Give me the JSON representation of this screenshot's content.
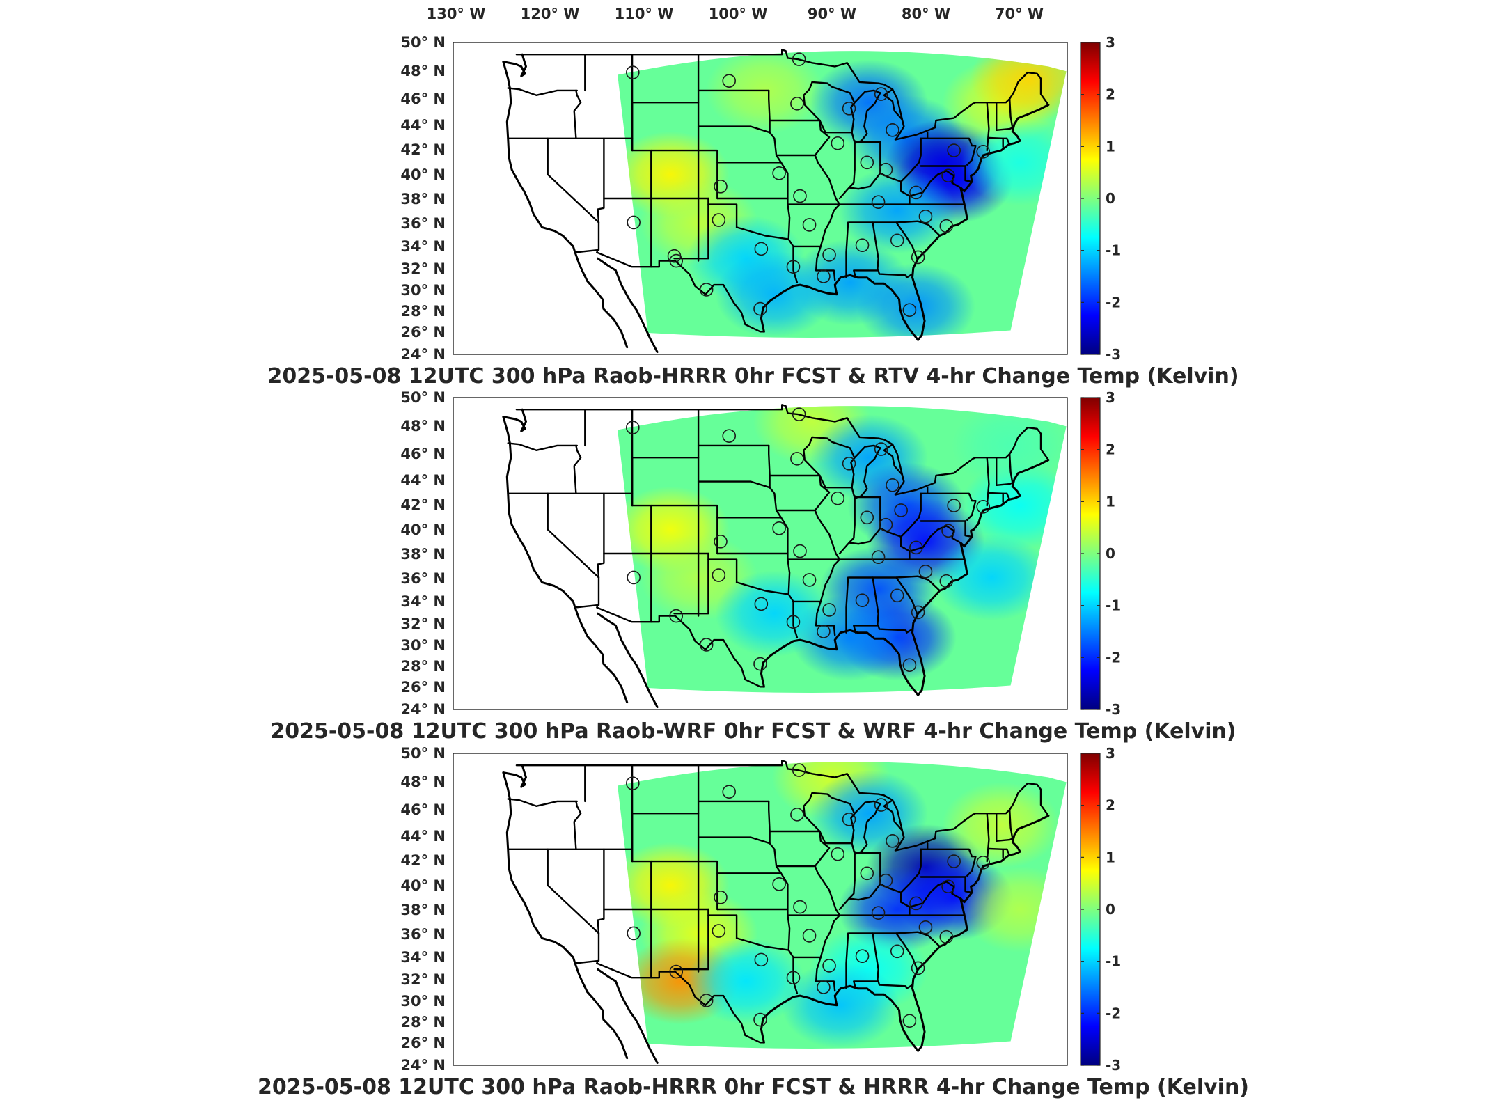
{
  "top_lon_labels": [
    "130° W",
    "120° W",
    "110° W",
    "100° W",
    "90° W",
    "80° W",
    "70° W"
  ],
  "lat_labels": [
    "50° N",
    "48° N",
    "46° N",
    "44° N",
    "42° N",
    "40° N",
    "38° N",
    "36° N",
    "34° N",
    "32° N",
    "30° N",
    "28° N",
    "26° N",
    "24° N"
  ],
  "colorbar": {
    "ticks": [
      "3",
      "2",
      "1",
      "0",
      "-1",
      "-2",
      "-3"
    ],
    "min": -3,
    "max": 3,
    "colormap": [
      "#00007f",
      "#0000ff",
      "#007fff",
      "#00ffff",
      "#7fff7f",
      "#ffff00",
      "#ff7f00",
      "#ff0000",
      "#7f0000"
    ]
  },
  "panels": [
    {
      "title": "2025-05-08 12UTC 300 hPa Raob-HRRR 0hr FCST & RTV 4-hr Change Temp (Kelvin)",
      "field_anomalies": [
        {
          "lon": -107,
          "lat": 39,
          "value": 0.8
        },
        {
          "lon": -104,
          "lat": 35,
          "value": 0.4
        },
        {
          "lon": -97,
          "lat": 46,
          "value": 0.3
        },
        {
          "lon": -86,
          "lat": 45,
          "value": -1.6
        },
        {
          "lon": -82,
          "lat": 42,
          "value": -1.5
        },
        {
          "lon": -78,
          "lat": 40,
          "value": -2.6
        },
        {
          "lon": -77,
          "lat": 38.5,
          "value": -2.3
        },
        {
          "lon": -83,
          "lat": 36,
          "value": -1.3
        },
        {
          "lon": -88,
          "lat": 30,
          "value": -1.3
        },
        {
          "lon": -81,
          "lat": 28,
          "value": -1.4
        },
        {
          "lon": -99,
          "lat": 32,
          "value": -1.0
        },
        {
          "lon": -96,
          "lat": 29,
          "value": -1.2
        },
        {
          "lon": -72,
          "lat": 45,
          "value": 0.5
        },
        {
          "lon": -69,
          "lat": 47,
          "value": 1.0
        },
        {
          "lon": -70,
          "lat": 40,
          "value": -0.6
        }
      ],
      "stations": [
        {
          "lon": -111.0,
          "lat": 47.5,
          "value": 0.2
        },
        {
          "lon": -100.8,
          "lat": 46.8,
          "value": -0.2
        },
        {
          "lon": -93.4,
          "lat": 48.6,
          "value": -0.4
        },
        {
          "lon": -93.6,
          "lat": 44.9,
          "value": -0.6
        },
        {
          "lon": -88.1,
          "lat": 44.5,
          "value": -1.6
        },
        {
          "lon": -84.7,
          "lat": 45.7,
          "value": -2.1
        },
        {
          "lon": -83.5,
          "lat": 42.7,
          "value": -1.3
        },
        {
          "lon": -89.3,
          "lat": 41.6,
          "value": -0.5
        },
        {
          "lon": -86.2,
          "lat": 40.0,
          "value": -0.3
        },
        {
          "lon": -84.2,
          "lat": 39.4,
          "value": -2.4
        },
        {
          "lon": -77.0,
          "lat": 41.0,
          "value": -2.2
        },
        {
          "lon": -77.6,
          "lat": 38.9,
          "value": -2.7
        },
        {
          "lon": -81.0,
          "lat": 37.5,
          "value": -1.5
        },
        {
          "lon": -85.0,
          "lat": 36.7,
          "value": -1.8
        },
        {
          "lon": -80.0,
          "lat": 35.5,
          "value": -0.8
        },
        {
          "lon": -77.8,
          "lat": 34.7,
          "value": -1.6
        },
        {
          "lon": -83.0,
          "lat": 33.5,
          "value": -0.9
        },
        {
          "lon": -86.7,
          "lat": 33.1,
          "value": -0.8
        },
        {
          "lon": -90.2,
          "lat": 32.3,
          "value": -0.7
        },
        {
          "lon": -92.3,
          "lat": 34.8,
          "value": -0.5
        },
        {
          "lon": -93.3,
          "lat": 37.2,
          "value": -0.4
        },
        {
          "lon": -95.5,
          "lat": 39.1,
          "value": -0.5
        },
        {
          "lon": -101.7,
          "lat": 38.0,
          "value": 0.3
        },
        {
          "lon": -110.9,
          "lat": 35.0,
          "value": 0.4
        },
        {
          "lon": -106.6,
          "lat": 32.2,
          "value": 0.1
        },
        {
          "lon": -101.9,
          "lat": 35.2,
          "value": 0.2
        },
        {
          "lon": -97.4,
          "lat": 32.8,
          "value": -0.6
        },
        {
          "lon": -94.0,
          "lat": 31.3,
          "value": -0.9
        },
        {
          "lon": -90.8,
          "lat": 30.5,
          "value": -0.9
        },
        {
          "lon": -106.4,
          "lat": 31.8,
          "value": 0.2
        },
        {
          "lon": -103.2,
          "lat": 29.4,
          "value": -0.4
        },
        {
          "lon": -97.5,
          "lat": 27.8,
          "value": -0.5
        },
        {
          "lon": -81.7,
          "lat": 27.7,
          "value": -1.6
        },
        {
          "lon": -80.8,
          "lat": 32.1,
          "value": -1.1
        },
        {
          "lon": -73.9,
          "lat": 40.9,
          "value": -1.3
        }
      ]
    },
    {
      "title": "2025-05-08 12UTC 300 hPa Raob-WRF 0hr FCST & WRF 4-hr Change Temp (Kelvin)",
      "field_anomalies": [
        {
          "lon": -107,
          "lat": 39,
          "value": 0.7
        },
        {
          "lon": -104,
          "lat": 35,
          "value": 0.3
        },
        {
          "lon": -92,
          "lat": 48,
          "value": 0.4
        },
        {
          "lon": -86,
          "lat": 45,
          "value": -1.3
        },
        {
          "lon": -82,
          "lat": 41,
          "value": -1.8
        },
        {
          "lon": -80,
          "lat": 38,
          "value": -2.2
        },
        {
          "lon": -85,
          "lat": 34,
          "value": -1.8
        },
        {
          "lon": -83,
          "lat": 30,
          "value": -2.0
        },
        {
          "lon": -88,
          "lat": 30,
          "value": -1.5
        },
        {
          "lon": -96,
          "lat": 32,
          "value": -1.0
        },
        {
          "lon": -73,
          "lat": 35,
          "value": -1.0
        },
        {
          "lon": -70,
          "lat": 41,
          "value": -0.7
        },
        {
          "lon": -71,
          "lat": 46,
          "value": -0.3
        }
      ],
      "stations": [
        {
          "lon": -111.0,
          "lat": 47.5,
          "value": 0.1
        },
        {
          "lon": -100.8,
          "lat": 46.8,
          "value": -0.1
        },
        {
          "lon": -93.4,
          "lat": 48.6,
          "value": 0.3
        },
        {
          "lon": -93.6,
          "lat": 44.9,
          "value": -1.0
        },
        {
          "lon": -88.1,
          "lat": 44.5,
          "value": -1.5
        },
        {
          "lon": -84.7,
          "lat": 45.7,
          "value": -1.9
        },
        {
          "lon": -83.5,
          "lat": 42.7,
          "value": -0.9
        },
        {
          "lon": -89.3,
          "lat": 41.6,
          "value": -0.2
        },
        {
          "lon": -86.2,
          "lat": 40.0,
          "value": -0.3
        },
        {
          "lon": -84.2,
          "lat": 39.4,
          "value": -2.3
        },
        {
          "lon": -82.6,
          "lat": 40.6,
          "value": -2.1
        },
        {
          "lon": -77.0,
          "lat": 41.0,
          "value": -0.8
        },
        {
          "lon": -77.6,
          "lat": 38.9,
          "value": -2.6
        },
        {
          "lon": -81.0,
          "lat": 37.5,
          "value": -2.5
        },
        {
          "lon": -85.0,
          "lat": 36.7,
          "value": -0.6
        },
        {
          "lon": -80.0,
          "lat": 35.5,
          "value": -1.6
        },
        {
          "lon": -77.8,
          "lat": 34.7,
          "value": -2.0
        },
        {
          "lon": -83.0,
          "lat": 33.5,
          "value": -0.9
        },
        {
          "lon": -86.7,
          "lat": 33.1,
          "value": -0.7
        },
        {
          "lon": -90.2,
          "lat": 32.3,
          "value": -0.5
        },
        {
          "lon": -92.3,
          "lat": 34.8,
          "value": -0.3
        },
        {
          "lon": -93.3,
          "lat": 37.2,
          "value": -0.3
        },
        {
          "lon": -95.5,
          "lat": 39.1,
          "value": -0.2
        },
        {
          "lon": -101.7,
          "lat": 38.0,
          "value": 0.3
        },
        {
          "lon": -110.9,
          "lat": 35.0,
          "value": 0.2
        },
        {
          "lon": -101.9,
          "lat": 35.2,
          "value": 0.6
        },
        {
          "lon": -97.4,
          "lat": 32.8,
          "value": -0.4
        },
        {
          "lon": -94.0,
          "lat": 31.3,
          "value": -0.9
        },
        {
          "lon": -90.8,
          "lat": 30.5,
          "value": -1.2
        },
        {
          "lon": -106.4,
          "lat": 31.8,
          "value": 0.1
        },
        {
          "lon": -103.2,
          "lat": 29.4,
          "value": -0.2
        },
        {
          "lon": -97.5,
          "lat": 27.8,
          "value": -0.4
        },
        {
          "lon": -81.7,
          "lat": 27.7,
          "value": -2.4
        },
        {
          "lon": -80.8,
          "lat": 32.1,
          "value": -2.4
        },
        {
          "lon": -73.9,
          "lat": 40.9,
          "value": -1.5
        }
      ]
    },
    {
      "title": "2025-05-08 12UTC 300 hPa Raob-HRRR 0hr FCST & HRRR 4-hr Change Temp (Kelvin)",
      "field_anomalies": [
        {
          "lon": -107,
          "lat": 39,
          "value": 0.8
        },
        {
          "lon": -104,
          "lat": 35,
          "value": 0.6
        },
        {
          "lon": -106,
          "lat": 31,
          "value": 1.4
        },
        {
          "lon": -90,
          "lat": 48,
          "value": 0.5
        },
        {
          "lon": -86,
          "lat": 45,
          "value": -1.3
        },
        {
          "lon": -80,
          "lat": 40.5,
          "value": -2.7
        },
        {
          "lon": -83,
          "lat": 37,
          "value": -2.0
        },
        {
          "lon": -77,
          "lat": 38,
          "value": -2.2
        },
        {
          "lon": -86,
          "lat": 32,
          "value": -0.7
        },
        {
          "lon": -99,
          "lat": 31,
          "value": -0.9
        },
        {
          "lon": -89,
          "lat": 29,
          "value": -1.1
        },
        {
          "lon": -72,
          "lat": 44,
          "value": 0.4
        },
        {
          "lon": -70,
          "lat": 37,
          "value": 0.3
        }
      ],
      "stations": [
        {
          "lon": -111.0,
          "lat": 47.5,
          "value": 0.3
        },
        {
          "lon": -100.8,
          "lat": 46.8,
          "value": 0.0
        },
        {
          "lon": -93.4,
          "lat": 48.6,
          "value": 0.3
        },
        {
          "lon": -93.6,
          "lat": 44.9,
          "value": -0.6
        },
        {
          "lon": -88.1,
          "lat": 44.5,
          "value": -1.7
        },
        {
          "lon": -84.7,
          "lat": 45.7,
          "value": -2.0
        },
        {
          "lon": -83.5,
          "lat": 42.7,
          "value": -1.2
        },
        {
          "lon": -89.3,
          "lat": 41.6,
          "value": -0.3
        },
        {
          "lon": -86.2,
          "lat": 40.0,
          "value": -0.4
        },
        {
          "lon": -84.2,
          "lat": 39.4,
          "value": -1.9
        },
        {
          "lon": -77.0,
          "lat": 41.0,
          "value": -2.5
        },
        {
          "lon": -77.6,
          "lat": 38.9,
          "value": -2.6
        },
        {
          "lon": -81.0,
          "lat": 37.5,
          "value": -1.2
        },
        {
          "lon": -85.0,
          "lat": 36.7,
          "value": -1.6
        },
        {
          "lon": -80.0,
          "lat": 35.5,
          "value": -0.7
        },
        {
          "lon": -77.8,
          "lat": 34.7,
          "value": -0.9
        },
        {
          "lon": -83.0,
          "lat": 33.5,
          "value": -0.7
        },
        {
          "lon": -86.7,
          "lat": 33.1,
          "value": -0.6
        },
        {
          "lon": -90.2,
          "lat": 32.3,
          "value": -0.5
        },
        {
          "lon": -92.3,
          "lat": 34.8,
          "value": -1.6
        },
        {
          "lon": -93.3,
          "lat": 37.2,
          "value": -0.4
        },
        {
          "lon": -95.5,
          "lat": 39.1,
          "value": -0.3
        },
        {
          "lon": -101.7,
          "lat": 38.0,
          "value": 0.4
        },
        {
          "lon": -110.9,
          "lat": 35.0,
          "value": 0.5
        },
        {
          "lon": -101.9,
          "lat": 35.2,
          "value": 0.8
        },
        {
          "lon": -97.4,
          "lat": 32.8,
          "value": -0.7
        },
        {
          "lon": -94.0,
          "lat": 31.3,
          "value": -0.8
        },
        {
          "lon": -90.8,
          "lat": 30.5,
          "value": -0.8
        },
        {
          "lon": -106.4,
          "lat": 31.8,
          "value": 0.4
        },
        {
          "lon": -103.2,
          "lat": 29.4,
          "value": -0.3
        },
        {
          "lon": -97.5,
          "lat": 27.8,
          "value": -0.5
        },
        {
          "lon": -81.7,
          "lat": 27.7,
          "value": -0.7
        },
        {
          "lon": -80.8,
          "lat": 32.1,
          "value": -0.7
        },
        {
          "lon": -73.9,
          "lat": 40.9,
          "value": -1.4
        }
      ]
    }
  ]
}
